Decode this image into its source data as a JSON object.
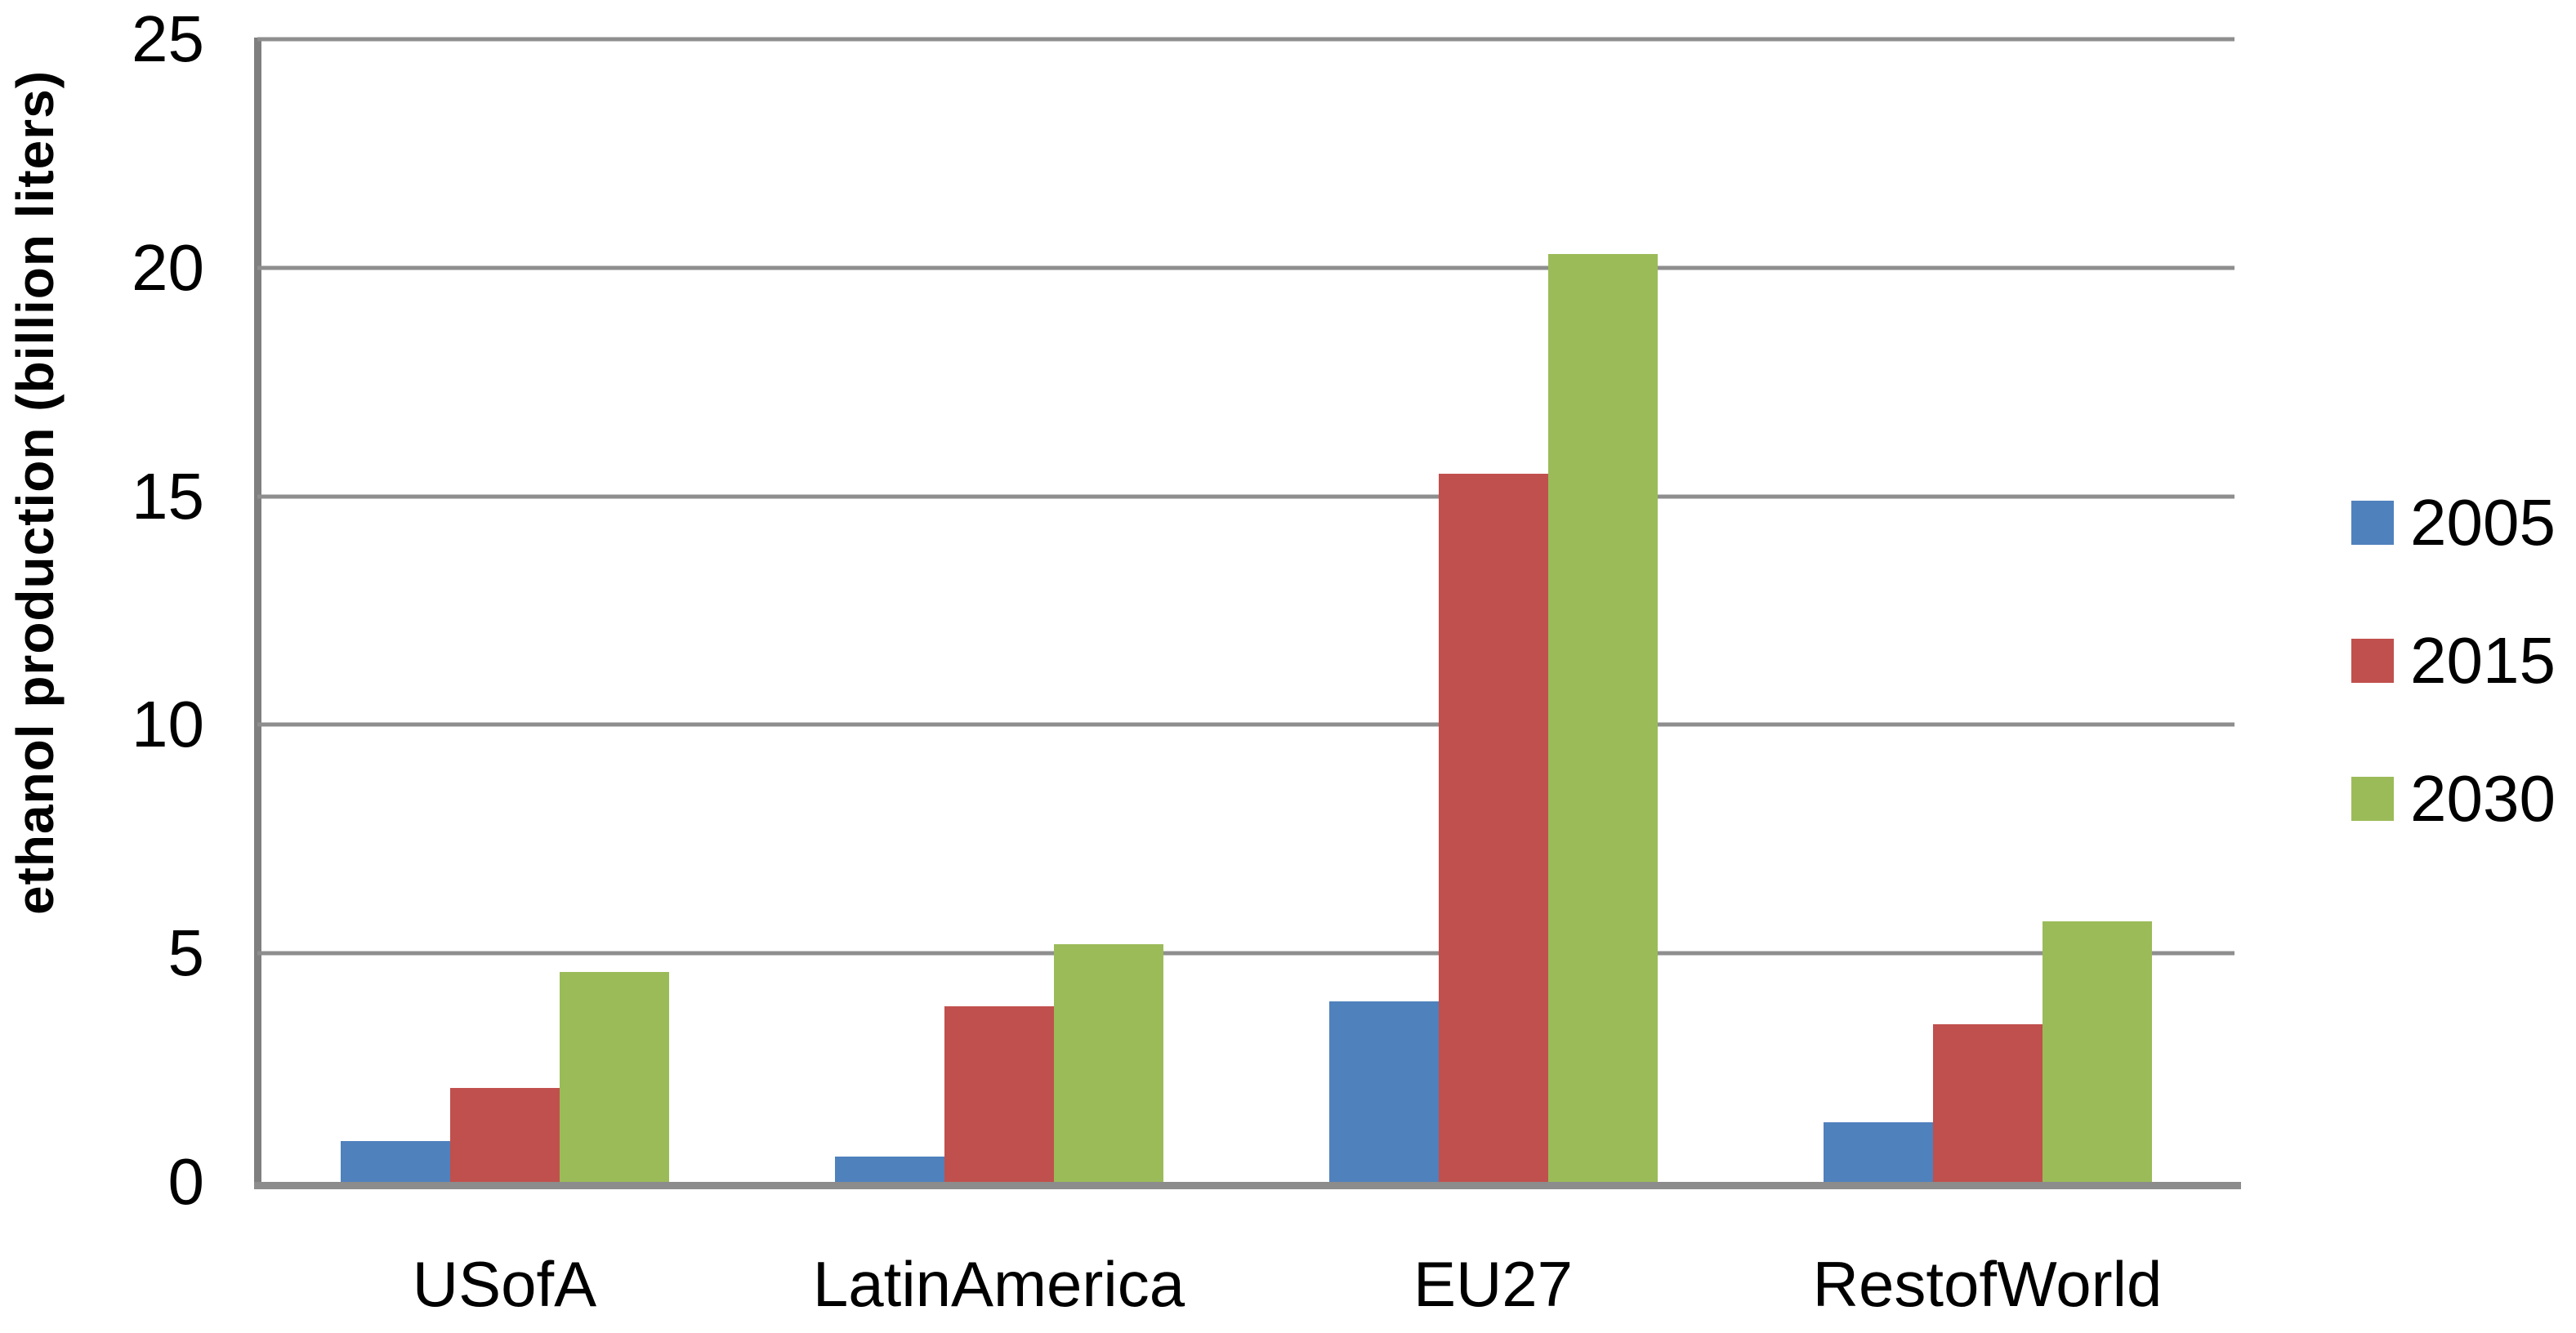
{
  "chart_data": {
    "type": "bar",
    "title": "",
    "xlabel": "",
    "ylabel": "ethanol production (billion liters)",
    "categories": [
      "USofA",
      "LatinAmerica",
      "EU27",
      "RestofWorld"
    ],
    "series": [
      {
        "name": "2005",
        "color": "#4f81bd",
        "values": [
          0.9,
          0.55,
          3.95,
          1.3
        ]
      },
      {
        "name": "2015",
        "color": "#c0504d",
        "values": [
          2.05,
          3.85,
          15.5,
          3.45
        ]
      },
      {
        "name": "2030",
        "color": "#9bbb59",
        "values": [
          4.6,
          5.2,
          20.3,
          5.7
        ]
      }
    ],
    "ylim": [
      0,
      25
    ],
    "yticks": [
      0,
      5,
      10,
      15,
      20,
      25
    ],
    "grid": "horizontal",
    "legend_position": "right"
  },
  "colors": {
    "background": "#ffffff",
    "gridline": "#8e8e8e",
    "axis": "#7f7f7f",
    "text": "#000000"
  }
}
